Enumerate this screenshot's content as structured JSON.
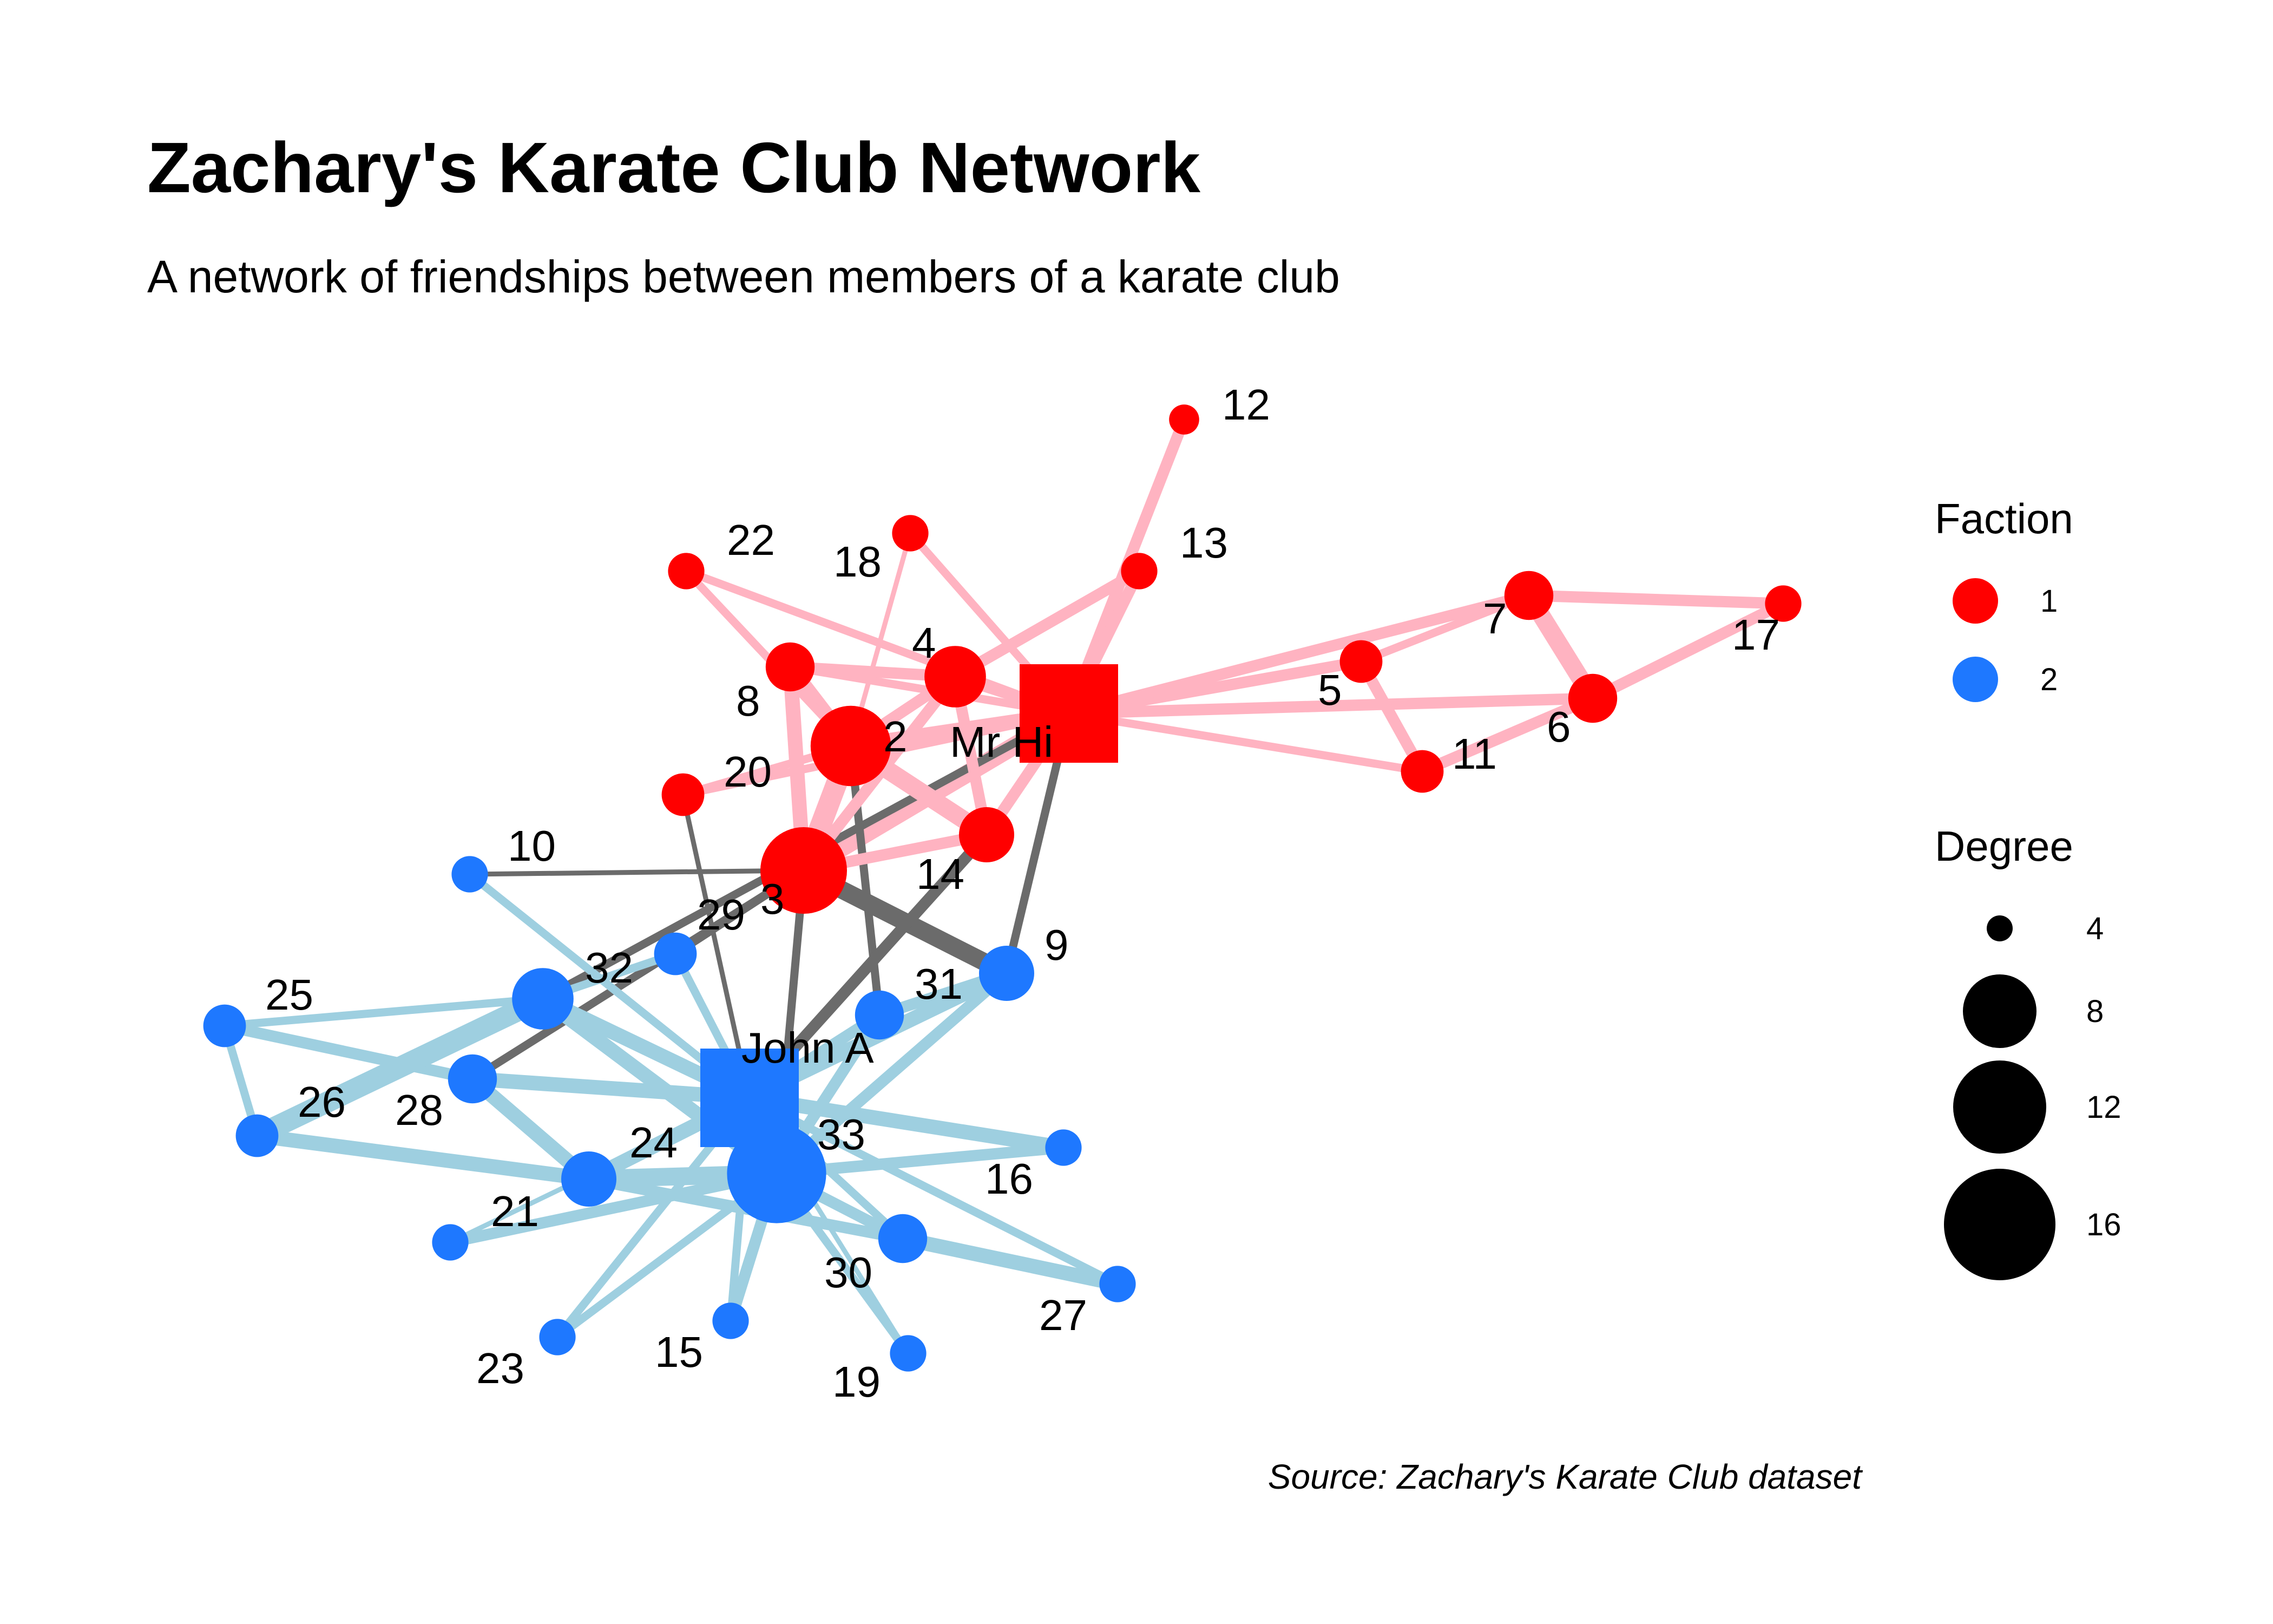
{
  "title": "Zachary's Karate Club Network",
  "subtitle": "A network of friendships between members of a karate club",
  "caption": "Source: Zachary's Karate Club dataset",
  "colors": {
    "faction1": "#ff0000",
    "faction2": "#1e78ff",
    "edge1": "#ffb3c1",
    "edge2": "#9ecfe0",
    "edge_between": "#6b6b6b"
  },
  "legend": {
    "faction_title": "Faction",
    "faction_items": [
      {
        "label": "1",
        "faction": 1
      },
      {
        "label": "2",
        "faction": 2
      }
    ],
    "degree_title": "Degree",
    "degree_items": [
      {
        "label": "4",
        "degree": 4
      },
      {
        "label": "8",
        "degree": 8
      },
      {
        "label": "12",
        "degree": 12
      },
      {
        "label": "16",
        "degree": 16
      }
    ]
  },
  "chart_data": {
    "type": "network",
    "nodes": [
      {
        "id": "Mr Hi",
        "label": "Mr Hi",
        "faction": 1,
        "degree": 16,
        "shape": "square"
      },
      {
        "id": "2",
        "label": "2",
        "faction": 1,
        "degree": 9
      },
      {
        "id": "3",
        "label": "3",
        "faction": 1,
        "degree": 10
      },
      {
        "id": "4",
        "label": "4",
        "faction": 1,
        "degree": 6
      },
      {
        "id": "5",
        "label": "5",
        "faction": 1,
        "degree": 3
      },
      {
        "id": "6",
        "label": "6",
        "faction": 1,
        "degree": 4
      },
      {
        "id": "7",
        "label": "7",
        "faction": 1,
        "degree": 4
      },
      {
        "id": "8",
        "label": "8",
        "faction": 1,
        "degree": 4
      },
      {
        "id": "9",
        "label": "9",
        "faction": 2,
        "degree": 5
      },
      {
        "id": "10",
        "label": "10",
        "faction": 2,
        "degree": 2
      },
      {
        "id": "11",
        "label": "11",
        "faction": 1,
        "degree": 3
      },
      {
        "id": "12",
        "label": "12",
        "faction": 1,
        "degree": 1
      },
      {
        "id": "13",
        "label": "13",
        "faction": 1,
        "degree": 2
      },
      {
        "id": "14",
        "label": "14",
        "faction": 1,
        "degree": 5
      },
      {
        "id": "15",
        "label": "15",
        "faction": 2,
        "degree": 2
      },
      {
        "id": "16",
        "label": "16",
        "faction": 2,
        "degree": 2
      },
      {
        "id": "17",
        "label": "17",
        "faction": 1,
        "degree": 2
      },
      {
        "id": "18",
        "label": "18",
        "faction": 1,
        "degree": 2
      },
      {
        "id": "19",
        "label": "19",
        "faction": 2,
        "degree": 2
      },
      {
        "id": "20",
        "label": "20",
        "faction": 1,
        "degree": 3
      },
      {
        "id": "21",
        "label": "21",
        "faction": 2,
        "degree": 2
      },
      {
        "id": "22",
        "label": "22",
        "faction": 1,
        "degree": 2
      },
      {
        "id": "23",
        "label": "23",
        "faction": 2,
        "degree": 2
      },
      {
        "id": "24",
        "label": "24",
        "faction": 2,
        "degree": 5
      },
      {
        "id": "25",
        "label": "25",
        "faction": 2,
        "degree": 3
      },
      {
        "id": "26",
        "label": "26",
        "faction": 2,
        "degree": 3
      },
      {
        "id": "27",
        "label": "27",
        "faction": 2,
        "degree": 2
      },
      {
        "id": "28",
        "label": "28",
        "faction": 2,
        "degree": 4
      },
      {
        "id": "29",
        "label": "29",
        "faction": 2,
        "degree": 3
      },
      {
        "id": "30",
        "label": "30",
        "faction": 2,
        "degree": 4
      },
      {
        "id": "31",
        "label": "31",
        "faction": 2,
        "degree": 4
      },
      {
        "id": "32",
        "label": "32",
        "faction": 2,
        "degree": 6
      },
      {
        "id": "33",
        "label": "33",
        "faction": 2,
        "degree": 12
      },
      {
        "id": "John A",
        "label": "John A",
        "faction": 2,
        "degree": 17,
        "shape": "square"
      }
    ],
    "edges": [
      {
        "source": "Mr Hi",
        "target": "2",
        "weight": 4
      },
      {
        "source": "Mr Hi",
        "target": "3",
        "weight": 5
      },
      {
        "source": "Mr Hi",
        "target": "4",
        "weight": 3
      },
      {
        "source": "Mr Hi",
        "target": "5",
        "weight": 3
      },
      {
        "source": "Mr Hi",
        "target": "6",
        "weight": 3
      },
      {
        "source": "Mr Hi",
        "target": "7",
        "weight": 3
      },
      {
        "source": "Mr Hi",
        "target": "8",
        "weight": 2
      },
      {
        "source": "Mr Hi",
        "target": "9",
        "weight": 2
      },
      {
        "source": "Mr Hi",
        "target": "11",
        "weight": 2
      },
      {
        "source": "Mr Hi",
        "target": "12",
        "weight": 3
      },
      {
        "source": "Mr Hi",
        "target": "13",
        "weight": 3
      },
      {
        "source": "Mr Hi",
        "target": "14",
        "weight": 3
      },
      {
        "source": "Mr Hi",
        "target": "18",
        "weight": 2
      },
      {
        "source": "Mr Hi",
        "target": "20",
        "weight": 2
      },
      {
        "source": "Mr Hi",
        "target": "22",
        "weight": 2
      },
      {
        "source": "Mr Hi",
        "target": "32",
        "weight": 2
      },
      {
        "source": "2",
        "target": "3",
        "weight": 6
      },
      {
        "source": "2",
        "target": "4",
        "weight": 3
      },
      {
        "source": "2",
        "target": "8",
        "weight": 4
      },
      {
        "source": "2",
        "target": "14",
        "weight": 5
      },
      {
        "source": "2",
        "target": "18",
        "weight": 1
      },
      {
        "source": "2",
        "target": "20",
        "weight": 2
      },
      {
        "source": "2",
        "target": "22",
        "weight": 2
      },
      {
        "source": "2",
        "target": "31",
        "weight": 2
      },
      {
        "source": "3",
        "target": "4",
        "weight": 3
      },
      {
        "source": "3",
        "target": "8",
        "weight": 4
      },
      {
        "source": "3",
        "target": "9",
        "weight": 5
      },
      {
        "source": "3",
        "target": "10",
        "weight": 1
      },
      {
        "source": "3",
        "target": "14",
        "weight": 3
      },
      {
        "source": "3",
        "target": "28",
        "weight": 2
      },
      {
        "source": "3",
        "target": "29",
        "weight": 2
      },
      {
        "source": "3",
        "target": "33",
        "weight": 2
      },
      {
        "source": "4",
        "target": "8",
        "weight": 3
      },
      {
        "source": "4",
        "target": "13",
        "weight": 3
      },
      {
        "source": "4",
        "target": "14",
        "weight": 3
      },
      {
        "source": "5",
        "target": "7",
        "weight": 2
      },
      {
        "source": "5",
        "target": "11",
        "weight": 3
      },
      {
        "source": "6",
        "target": "7",
        "weight": 5
      },
      {
        "source": "6",
        "target": "11",
        "weight": 3
      },
      {
        "source": "6",
        "target": "17",
        "weight": 3
      },
      {
        "source": "7",
        "target": "17",
        "weight": 3
      },
      {
        "source": "9",
        "target": "31",
        "weight": 3
      },
      {
        "source": "9",
        "target": "33",
        "weight": 3
      },
      {
        "source": "9",
        "target": "John A",
        "weight": 4
      },
      {
        "source": "10",
        "target": "John A",
        "weight": 2
      },
      {
        "source": "14",
        "target": "John A",
        "weight": 3
      },
      {
        "source": "15",
        "target": "33",
        "weight": 3
      },
      {
        "source": "15",
        "target": "John A",
        "weight": 2
      },
      {
        "source": "16",
        "target": "33",
        "weight": 3
      },
      {
        "source": "16",
        "target": "John A",
        "weight": 4
      },
      {
        "source": "19",
        "target": "33",
        "weight": 2
      },
      {
        "source": "19",
        "target": "John A",
        "weight": 1
      },
      {
        "source": "20",
        "target": "John A",
        "weight": 1
      },
      {
        "source": "21",
        "target": "33",
        "weight": 3
      },
      {
        "source": "21",
        "target": "John A",
        "weight": 1
      },
      {
        "source": "23",
        "target": "33",
        "weight": 2
      },
      {
        "source": "23",
        "target": "John A",
        "weight": 2
      },
      {
        "source": "24",
        "target": "26",
        "weight": 4
      },
      {
        "source": "24",
        "target": "28",
        "weight": 4
      },
      {
        "source": "24",
        "target": "30",
        "weight": 3
      },
      {
        "source": "24",
        "target": "33",
        "weight": 5
      },
      {
        "source": "24",
        "target": "John A",
        "weight": 4
      },
      {
        "source": "25",
        "target": "26",
        "weight": 2
      },
      {
        "source": "25",
        "target": "28",
        "weight": 3
      },
      {
        "source": "25",
        "target": "32",
        "weight": 2
      },
      {
        "source": "26",
        "target": "32",
        "weight": 6
      },
      {
        "source": "27",
        "target": "30",
        "weight": 4
      },
      {
        "source": "27",
        "target": "John A",
        "weight": 2
      },
      {
        "source": "28",
        "target": "John A",
        "weight": 4
      },
      {
        "source": "29",
        "target": "32",
        "weight": 2
      },
      {
        "source": "29",
        "target": "John A",
        "weight": 2
      },
      {
        "source": "30",
        "target": "33",
        "weight": 3
      },
      {
        "source": "30",
        "target": "John A",
        "weight": 2
      },
      {
        "source": "31",
        "target": "33",
        "weight": 3
      },
      {
        "source": "31",
        "target": "John A",
        "weight": 3
      },
      {
        "source": "32",
        "target": "33",
        "weight": 4
      },
      {
        "source": "32",
        "target": "John A",
        "weight": 4
      },
      {
        "source": "33",
        "target": "John A",
        "weight": 4
      }
    ]
  }
}
